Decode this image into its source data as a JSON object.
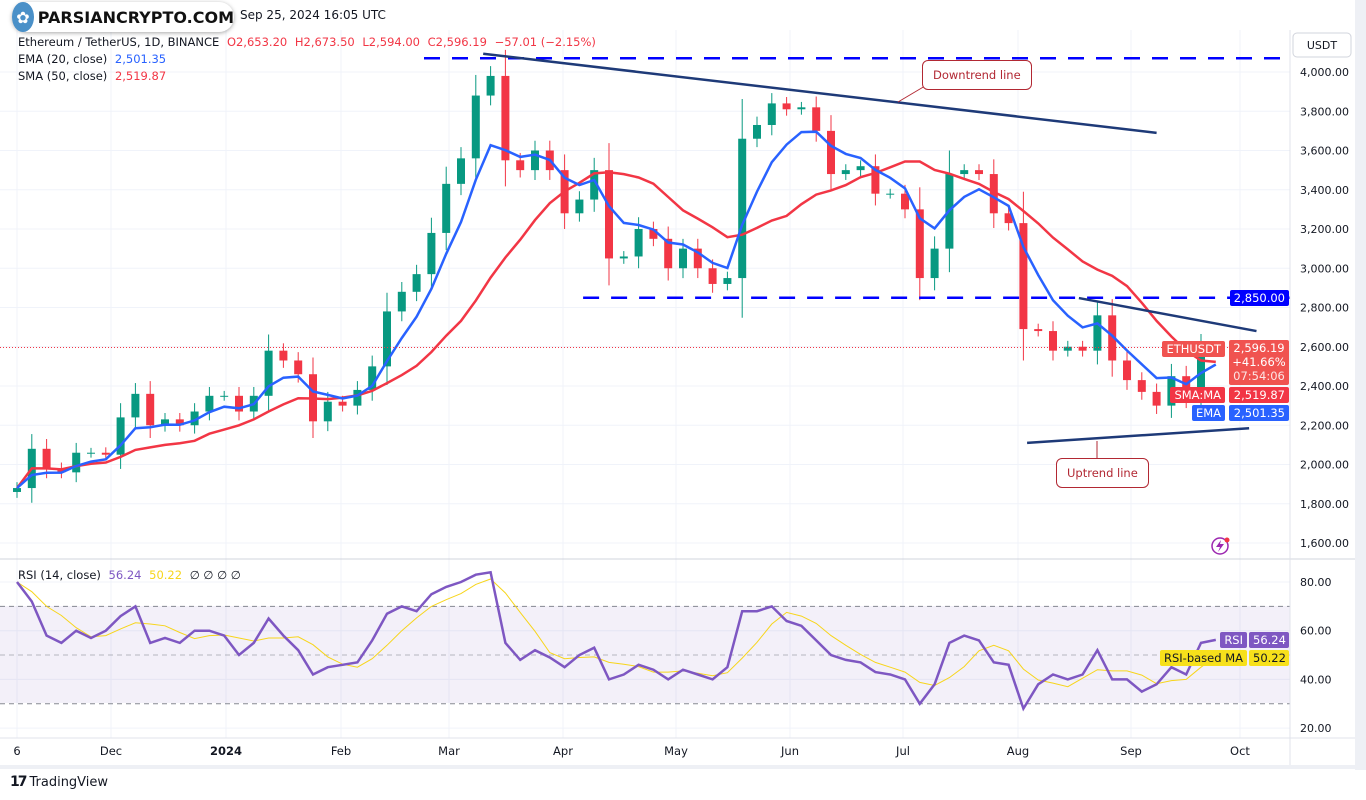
{
  "header": {
    "datetime": "Sep 25, 2024 16:05 UTC",
    "watermark": "PARSIANCRYPTO.COM"
  },
  "legend": {
    "symbol": "Ethereum / TetherUS, 1D, BINANCE",
    "open": "O2,653.20",
    "high": "H2,673.50",
    "low": "L2,594.00",
    "close": "C2,596.19",
    "change": "−57.01 (−2.15%)",
    "ema_label": "EMA (20, close)",
    "ema_value": "2,501.35",
    "sma_label": "SMA (50, close)",
    "sma_value": "2,519.87",
    "rsi_label": "RSI (14, close)",
    "rsi_value": "56.24",
    "rsi_ma_value": "50.22",
    "rsi_extra": "∅ ∅ ∅ ∅"
  },
  "price_axis": {
    "currency": "USDT",
    "ticks": [
      "4,000.00",
      "3,800.00",
      "3,600.00",
      "3,400.00",
      "3,200.00",
      "3,000.00",
      "2,800.00",
      "2,600.00",
      "2,400.00",
      "2,200.00",
      "2,000.00",
      "1,800.00",
      "1,600.00"
    ]
  },
  "rsi_axis": {
    "ticks": [
      "80.00",
      "60.00",
      "40.00",
      "20.00"
    ]
  },
  "time_axis": {
    "ticks": [
      "6",
      "Dec",
      "2024",
      "Feb",
      "Mar",
      "Apr",
      "May",
      "Jun",
      "Jul",
      "Aug",
      "Sep",
      "Oct"
    ]
  },
  "tags": {
    "level_2850": "2,850.00",
    "symbol_tag": "ETHUSDT",
    "last_price": "2,596.19",
    "pct": "+41.66%",
    "countdown": "07:54:06",
    "sma_tag": "SMA:MA",
    "sma_value": "2,519.87",
    "ema_tag": "EMA",
    "ema_value": "2,501.35",
    "rsi_tag": "RSI",
    "rsi_value": "56.24",
    "rsi_ma_tag": "RSI-based MA",
    "rsi_ma_value": "50.22"
  },
  "annotations": {
    "downtrend": "Downtrend line",
    "uptrend": "Uptrend line"
  },
  "footer": {
    "brand": "TradingView"
  },
  "colors": {
    "up": "#089981",
    "down": "#f23645",
    "ema": "#2962ff",
    "sma": "#f23645",
    "rsi": "#7e57c2",
    "rsi_ma": "#f7d51b",
    "trendline": "#1e3a78",
    "level": "#0000ff"
  },
  "chart_data": {
    "type": "candlestick",
    "symbol": "ETHUSDT",
    "interval": "1D",
    "ylim": [
      1500,
      4100
    ],
    "grid": true,
    "dates": [
      "2023-11-06",
      "2023-11-10",
      "2023-11-14",
      "2023-11-18",
      "2023-11-22",
      "2023-11-26",
      "2023-11-30",
      "2023-12-04",
      "2023-12-08",
      "2023-12-12",
      "2023-12-16",
      "2023-12-20",
      "2023-12-24",
      "2023-12-28",
      "2024-01-01",
      "2024-01-05",
      "2024-01-09",
      "2024-01-13",
      "2024-01-17",
      "2024-01-21",
      "2024-01-25",
      "2024-01-29",
      "2024-02-02",
      "2024-02-06",
      "2024-02-10",
      "2024-02-14",
      "2024-02-18",
      "2024-02-22",
      "2024-02-26",
      "2024-03-01",
      "2024-03-05",
      "2024-03-09",
      "2024-03-13",
      "2024-03-17",
      "2024-03-21",
      "2024-03-25",
      "2024-03-29",
      "2024-04-02",
      "2024-04-06",
      "2024-04-10",
      "2024-04-14",
      "2024-04-18",
      "2024-04-22",
      "2024-04-26",
      "2024-04-30",
      "2024-05-04",
      "2024-05-08",
      "2024-05-12",
      "2024-05-16",
      "2024-05-20",
      "2024-05-24",
      "2024-05-28",
      "2024-06-01",
      "2024-06-05",
      "2024-06-09",
      "2024-06-13",
      "2024-06-17",
      "2024-06-21",
      "2024-06-25",
      "2024-06-29",
      "2024-07-03",
      "2024-07-07",
      "2024-07-11",
      "2024-07-15",
      "2024-07-19",
      "2024-07-23",
      "2024-07-27",
      "2024-07-31",
      "2024-08-04",
      "2024-08-08",
      "2024-08-12",
      "2024-08-16",
      "2024-08-20",
      "2024-08-24",
      "2024-08-28",
      "2024-09-01",
      "2024-09-05",
      "2024-09-09",
      "2024-09-13",
      "2024-09-17",
      "2024-09-21",
      "2024-09-25"
    ],
    "close": [
      1880,
      2080,
      1980,
      1960,
      2060,
      2060,
      2050,
      2240,
      2360,
      2200,
      2230,
      2200,
      2270,
      2350,
      2350,
      2270,
      2350,
      2580,
      2530,
      2460,
      2220,
      2320,
      2300,
      2380,
      2500,
      2780,
      2880,
      2970,
      3180,
      3430,
      3560,
      3880,
      3980,
      3550,
      3500,
      3600,
      3500,
      3280,
      3350,
      3500,
      3050,
      3060,
      3200,
      3150,
      3000,
      3100,
      3000,
      2920,
      2950,
      3660,
      3730,
      3840,
      3810,
      3820,
      3700,
      3480,
      3500,
      3520,
      3380,
      3380,
      3300,
      2950,
      3100,
      3480,
      3500,
      3480,
      3280,
      3230,
      2690,
      2680,
      2580,
      2600,
      2580,
      2760,
      2530,
      2430,
      2370,
      2300,
      2450,
      2340,
      2580,
      2596.19
    ],
    "rsi": [
      80,
      72,
      58,
      55,
      60,
      57,
      60,
      66,
      70,
      55,
      57,
      55,
      60,
      60,
      58,
      50,
      55,
      65,
      58,
      52,
      42,
      45,
      46,
      47,
      56,
      67,
      70,
      68,
      75,
      78,
      80,
      83,
      84,
      55,
      48,
      52,
      49,
      45,
      50,
      53,
      40,
      42,
      46,
      44,
      40,
      44,
      42,
      40,
      45,
      68,
      68,
      70,
      64,
      62,
      56,
      50,
      48,
      47,
      43,
      42,
      40,
      30,
      38,
      55,
      58,
      56,
      47,
      46,
      28,
      38,
      42,
      40,
      42,
      52,
      40,
      40,
      35,
      38,
      45,
      42,
      55,
      56.24
    ],
    "last": {
      "open": 2653.2,
      "high": 2673.5,
      "low": 2594.0,
      "close": 2596.19,
      "ema20": 2501.35,
      "sma50": 2519.87,
      "rsi": 56.24,
      "rsi_ma": 50.22
    },
    "rsi_bands": [
      70,
      50,
      30
    ],
    "levels": [
      {
        "price": 4070,
        "from": "2024-02-24",
        "style": "dashed"
      },
      {
        "price": 2850,
        "from": "2024-04-07",
        "style": "dashed"
      }
    ],
    "trendlines": [
      {
        "name": "downtrend",
        "from": [
          "2024-03-11",
          4093
        ],
        "to": [
          "2024-09-09",
          3690
        ]
      },
      {
        "name": "resistance",
        "from": [
          "2024-08-19",
          2848
        ],
        "to": [
          "2024-10-06",
          2680
        ]
      },
      {
        "name": "uptrend",
        "from": [
          "2024-08-05",
          2110
        ],
        "to": [
          "2024-10-04",
          2185
        ]
      }
    ]
  }
}
